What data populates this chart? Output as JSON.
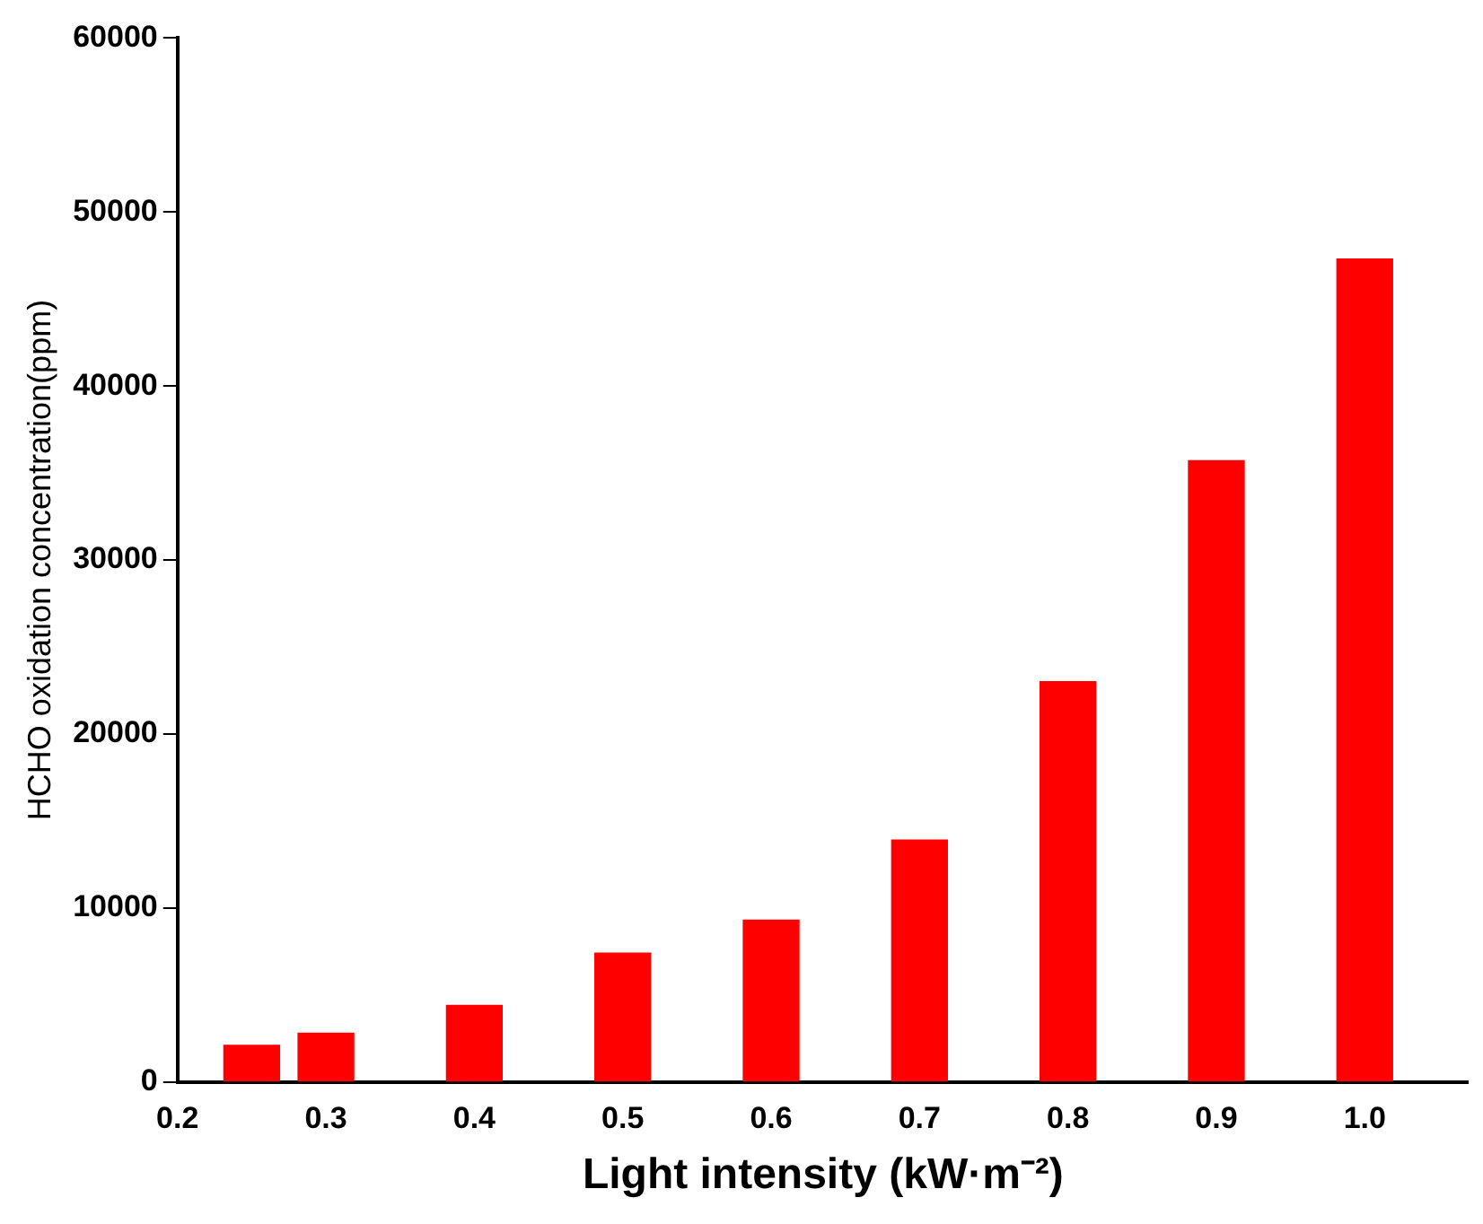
{
  "chart_data": {
    "type": "bar",
    "xlabel": "Light intensity (kW·m⁻²)",
    "ylabel": "HCHO oxidation concentration(ppm)",
    "x": [
      0.25,
      0.3,
      0.4,
      0.5,
      0.6,
      0.7,
      0.8,
      0.9,
      1.0
    ],
    "values": [
      2100,
      2800,
      4400,
      7400,
      9300,
      13900,
      23000,
      35700,
      47300
    ],
    "color": "#ff0000",
    "xlim": [
      0.2,
      1.07
    ],
    "xticks": [
      0.2,
      0.3,
      0.4,
      0.5,
      0.6,
      0.7,
      0.8,
      0.9,
      {
        "value": 1,
        "label": "1.0"
      }
    ],
    "ylim": [
      0,
      60000
    ],
    "yticks": [
      0,
      10000,
      20000,
      30000,
      40000,
      50000,
      60000
    ],
    "grid": false,
    "legend": false
  }
}
